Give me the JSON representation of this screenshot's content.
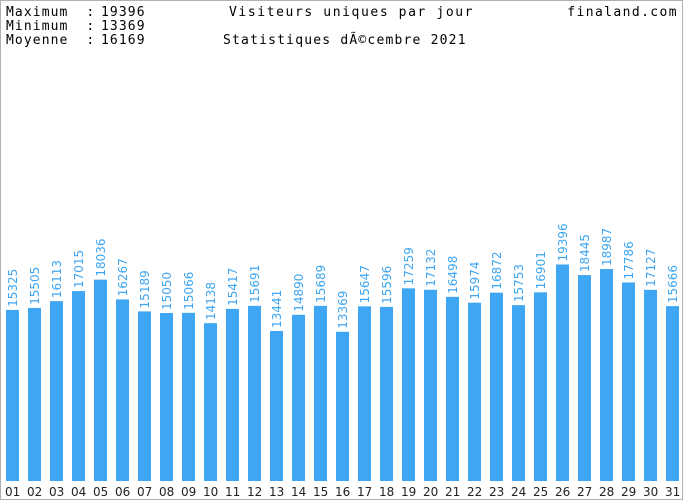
{
  "header": {
    "stats": [
      {
        "label": "Maximum  :",
        "value": "19396"
      },
      {
        "label": "Minimum  :",
        "value": "13369"
      },
      {
        "label": "Moyenne  :",
        "value": "16169"
      }
    ],
    "site": "finaland.com"
  },
  "chart_data": {
    "type": "bar",
    "title": "Visiteurs uniques par jour",
    "subtitle": "Statistiques dÃ©cembre 2021",
    "xlabel": "",
    "ylabel": "",
    "grid": false,
    "legend": "none",
    "bar_color": "#3ea6f2",
    "ylim": [
      0,
      43000
    ],
    "categories": [
      "01",
      "02",
      "03",
      "04",
      "05",
      "06",
      "07",
      "08",
      "09",
      "10",
      "11",
      "12",
      "13",
      "14",
      "15",
      "16",
      "17",
      "18",
      "19",
      "20",
      "21",
      "22",
      "23",
      "24",
      "25",
      "26",
      "27",
      "28",
      "29",
      "30",
      "31"
    ],
    "values": [
      15325,
      15505,
      16113,
      17015,
      18036,
      16267,
      15189,
      15050,
      15066,
      14138,
      15417,
      15691,
      13441,
      14890,
      15689,
      13369,
      15647,
      15596,
      17259,
      17132,
      16498,
      15974,
      16872,
      15753,
      16901,
      19396,
      18445,
      18987,
      17786,
      17127,
      15666
    ]
  }
}
